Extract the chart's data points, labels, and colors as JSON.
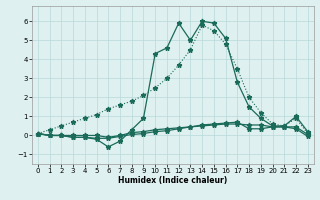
{
  "x": [
    0,
    1,
    2,
    3,
    4,
    5,
    6,
    7,
    8,
    9,
    10,
    11,
    12,
    13,
    14,
    15,
    16,
    17,
    18,
    19,
    20,
    21,
    22,
    23
  ],
  "y_main": [
    0.1,
    0.0,
    0.0,
    -0.1,
    -0.1,
    -0.2,
    -0.6,
    -0.3,
    0.3,
    0.9,
    4.3,
    4.6,
    5.9,
    5.0,
    6.0,
    5.9,
    5.1,
    2.8,
    1.5,
    0.9,
    0.5,
    0.5,
    1.0,
    0.2
  ],
  "y_dot": [
    0.1,
    0.3,
    0.5,
    0.7,
    0.9,
    1.1,
    1.4,
    1.6,
    1.8,
    2.1,
    2.5,
    3.0,
    3.7,
    4.5,
    5.8,
    5.5,
    4.8,
    3.5,
    2.0,
    1.2,
    0.6,
    0.5,
    0.9,
    0.1
  ],
  "y_flat1": [
    0.1,
    0.0,
    0.0,
    0.0,
    0.0,
    0.0,
    -0.1,
    0.0,
    0.15,
    0.2,
    0.3,
    0.35,
    0.4,
    0.45,
    0.5,
    0.55,
    0.6,
    0.6,
    0.55,
    0.55,
    0.45,
    0.45,
    0.45,
    0.05
  ],
  "y_flat2": [
    0.1,
    0.0,
    0.0,
    -0.1,
    -0.1,
    -0.15,
    -0.15,
    -0.05,
    0.05,
    0.1,
    0.2,
    0.25,
    0.35,
    0.45,
    0.55,
    0.6,
    0.65,
    0.7,
    0.35,
    0.35,
    0.45,
    0.45,
    0.35,
    -0.05
  ],
  "bg_color": "#dff0f0",
  "grid_color": "#b8d8d8",
  "line_color": "#1a6b5a",
  "xlabel": "Humidex (Indice chaleur)",
  "xlim": [
    -0.5,
    23.5
  ],
  "ylim": [
    -1.5,
    6.8
  ],
  "yticks": [
    -1,
    0,
    1,
    2,
    3,
    4,
    5,
    6
  ],
  "xticks": [
    0,
    1,
    2,
    3,
    4,
    5,
    6,
    7,
    8,
    9,
    10,
    11,
    12,
    13,
    14,
    15,
    16,
    17,
    18,
    19,
    20,
    21,
    22,
    23
  ]
}
